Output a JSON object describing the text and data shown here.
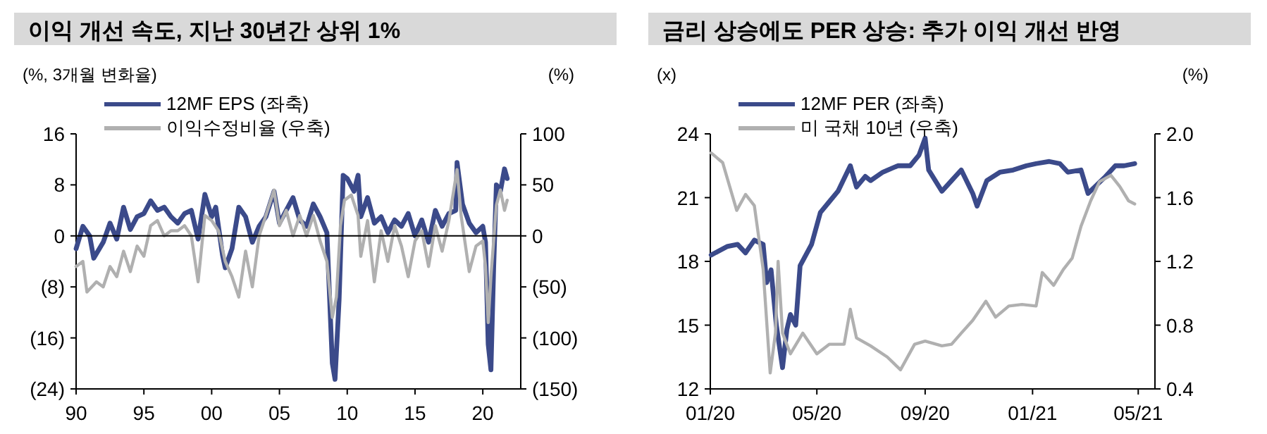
{
  "chart_data": [
    {
      "type": "line",
      "title": "이익 개선 속도, 지난 30년간 상위 1%",
      "ylabel": "(%, 3개월 변화율)",
      "y2label": "(%)",
      "legend": "top left",
      "grid": false,
      "xlim": [
        1990,
        2022.8
      ],
      "xticks": [
        {
          "value": 1990,
          "label": "90"
        },
        {
          "value": 1995,
          "label": "95"
        },
        {
          "value": 2000,
          "label": "00"
        },
        {
          "value": 2005,
          "label": "05"
        },
        {
          "value": 2010,
          "label": "10"
        },
        {
          "value": 2015,
          "label": "15"
        },
        {
          "value": 2020,
          "label": "20"
        }
      ],
      "ylim": [
        -24,
        16
      ],
      "yticks": [
        {
          "value": 16,
          "label": "16"
        },
        {
          "value": 8,
          "label": "8"
        },
        {
          "value": 0,
          "label": "0"
        },
        {
          "value": -8,
          "label": "(8)"
        },
        {
          "value": -16,
          "label": "(16)"
        },
        {
          "value": -24,
          "label": "(24)"
        }
      ],
      "y2lim": [
        -150,
        100
      ],
      "y2ticks": [
        {
          "value": 100,
          "label": "100"
        },
        {
          "value": 50,
          "label": "50"
        },
        {
          "value": 0,
          "label": "0"
        },
        {
          "value": -50,
          "label": "(50)"
        },
        {
          "value": -100,
          "label": "(100)"
        },
        {
          "value": -150,
          "label": "(150)"
        }
      ],
      "ref_lines": [
        {
          "axis": "y",
          "value": 0,
          "color": "#000000"
        }
      ],
      "series": [
        {
          "name": "12MF EPS (좌축)",
          "color": "#3b4a8a",
          "x": [
            1990,
            1990.5,
            1991,
            1991.3,
            1992,
            1992.5,
            1993,
            1993.5,
            1994,
            1994.5,
            1995,
            1995.5,
            1996,
            1996.5,
            1997,
            1997.5,
            1998,
            1998.5,
            1999,
            1999.5,
            2000,
            2000.3,
            2000.8,
            2001,
            2001.5,
            2002,
            2002.5,
            2003,
            2003.5,
            2004,
            2004.6,
            2005,
            2005.5,
            2006,
            2006.5,
            2007,
            2007.5,
            2008,
            2008.5,
            2008.9,
            2009.1,
            2009.4,
            2009.7,
            2010,
            2010.5,
            2010.8,
            2011,
            2011.5,
            2012,
            2012.5,
            2013,
            2013.5,
            2014,
            2014.5,
            2015,
            2015.5,
            2016,
            2016.5,
            2017,
            2017.5,
            2018,
            2018.1,
            2018.5,
            2019,
            2019.5,
            2020,
            2020.2,
            2020.4,
            2020.6,
            2020.8,
            2021,
            2021.3,
            2021.6,
            2021.8
          ],
          "values": [
            -2,
            1.5,
            0,
            -3.5,
            -1,
            2,
            -0.5,
            4.5,
            1,
            3,
            3.5,
            5.5,
            4,
            4.5,
            3,
            2,
            3.5,
            4,
            -0.5,
            6.5,
            3,
            4.5,
            -3,
            -5,
            -2,
            4.5,
            3,
            -1,
            1.5,
            3,
            7,
            2,
            4,
            6,
            2.5,
            1.5,
            5,
            3,
            0.5,
            -20,
            -22.5,
            -10,
            9.5,
            9,
            7,
            9.5,
            3,
            6,
            2,
            3,
            0.5,
            2.5,
            1.5,
            3.5,
            0,
            2.5,
            -1,
            4,
            1.5,
            3.5,
            4,
            11.5,
            5,
            2,
            0.5,
            1.5,
            -1,
            -17,
            -21,
            -5,
            8,
            7,
            10.5,
            9
          ]
        },
        {
          "name": "이익수정비율 (우축)",
          "color": "#b0b0b0",
          "axis": "y2",
          "x": [
            1990,
            1990.5,
            1990.8,
            1991.5,
            1992,
            1992.5,
            1993,
            1993.5,
            1994,
            1994.5,
            1995,
            1995.5,
            1996,
            1996.5,
            1997,
            1997.5,
            1998,
            1998.5,
            1999,
            1999.5,
            2000,
            2000.5,
            2001,
            2001.5,
            2002,
            2002.5,
            2003,
            2003.5,
            2004,
            2004.6,
            2005,
            2005.5,
            2006,
            2006.5,
            2007,
            2007.5,
            2008,
            2008.5,
            2008.9,
            2009.2,
            2009.5,
            2009.8,
            2010.3,
            2010.8,
            2011,
            2011.5,
            2012,
            2012.5,
            2013,
            2013.5,
            2014,
            2014.5,
            2015,
            2015.5,
            2016,
            2016.5,
            2017,
            2017.5,
            2018.1,
            2018.4,
            2019,
            2019.5,
            2020,
            2020.2,
            2020.4,
            2020.6,
            2021,
            2021.3,
            2021.6,
            2021.8
          ],
          "values": [
            -30,
            -25,
            -55,
            -45,
            -50,
            -30,
            -40,
            -15,
            -35,
            -10,
            -20,
            10,
            15,
            0,
            5,
            5,
            10,
            0,
            -45,
            20,
            15,
            5,
            -25,
            -40,
            -60,
            -15,
            -50,
            0,
            20,
            45,
            10,
            25,
            0,
            20,
            0,
            20,
            -5,
            -25,
            -80,
            -60,
            10,
            35,
            40,
            20,
            -20,
            15,
            -45,
            5,
            -25,
            10,
            -10,
            -40,
            -5,
            5,
            -30,
            10,
            -15,
            15,
            65,
            20,
            -35,
            -10,
            -5,
            -30,
            -85,
            -40,
            30,
            45,
            25,
            35
          ]
        }
      ]
    },
    {
      "type": "line",
      "title": "금리 상승에도 PER 상승: 추가 이익 개선 반영",
      "ylabel": "(x)",
      "y2label": "(%)",
      "legend": "top left",
      "grid": false,
      "xlim": [
        "2020-01-01",
        "2021-05-20"
      ],
      "xticks": [
        {
          "value": "2020-01-01",
          "label": "01/20"
        },
        {
          "value": "2020-05-01",
          "label": "05/20"
        },
        {
          "value": "2020-09-01",
          "label": "09/20"
        },
        {
          "value": "2021-01-01",
          "label": "01/21"
        },
        {
          "value": "2021-05-01",
          "label": "05/21"
        }
      ],
      "ylim": [
        12,
        24
      ],
      "yticks": [
        12,
        15,
        18,
        21,
        24
      ],
      "y2lim": [
        0.4,
        2.0
      ],
      "y2ticks": [
        {
          "value": 0.4,
          "label": "0.4"
        },
        {
          "value": 0.8,
          "label": "0.8"
        },
        {
          "value": 1.2,
          "label": "1.2"
        },
        {
          "value": 1.6,
          "label": "1.6"
        },
        {
          "value": 2.0,
          "label": "2.0"
        }
      ],
      "series": [
        {
          "name": "12MF PER (좌축)",
          "color": "#3b4a8a",
          "x": [
            "2020-01-02",
            "2020-01-20",
            "2020-02-01",
            "2020-02-10",
            "2020-02-20",
            "2020-03-01",
            "2020-03-05",
            "2020-03-10",
            "2020-03-16",
            "2020-03-23",
            "2020-03-28",
            "2020-04-01",
            "2020-04-07",
            "2020-04-12",
            "2020-04-25",
            "2020-05-05",
            "2020-05-15",
            "2020-05-25",
            "2020-06-08",
            "2020-06-15",
            "2020-06-25",
            "2020-07-01",
            "2020-07-15",
            "2020-08-01",
            "2020-08-15",
            "2020-08-25",
            "2020-09-01",
            "2020-09-05",
            "2020-09-20",
            "2020-10-01",
            "2020-10-12",
            "2020-10-25",
            "2020-10-30",
            "2020-11-10",
            "2020-11-25",
            "2020-12-10",
            "2020-12-25",
            "2021-01-05",
            "2021-01-20",
            "2021-02-01",
            "2021-02-10",
            "2021-02-25",
            "2021-03-05",
            "2021-03-15",
            "2021-03-25",
            "2021-04-05",
            "2021-04-15",
            "2021-04-27"
          ],
          "values": [
            18.3,
            18.7,
            18.8,
            18.4,
            19.0,
            18.8,
            17.0,
            17.6,
            15.0,
            13.0,
            14.8,
            15.5,
            15.0,
            17.8,
            18.8,
            20.3,
            20.8,
            21.3,
            22.5,
            21.5,
            22.0,
            21.8,
            22.2,
            22.5,
            22.5,
            23.0,
            23.8,
            22.3,
            21.3,
            21.8,
            22.3,
            21.2,
            20.6,
            21.8,
            22.2,
            22.3,
            22.5,
            22.6,
            22.7,
            22.6,
            22.2,
            22.3,
            21.2,
            21.6,
            22.0,
            22.5,
            22.5,
            22.6
          ]
        },
        {
          "name": "미 국채 10년 (우축)",
          "color": "#b0b0b0",
          "axis": "y2",
          "x": [
            "2020-01-02",
            "2020-01-15",
            "2020-01-31",
            "2020-02-10",
            "2020-02-20",
            "2020-03-01",
            "2020-03-09",
            "2020-03-15",
            "2020-03-18",
            "2020-03-23",
            "2020-04-01",
            "2020-04-15",
            "2020-05-01",
            "2020-05-15",
            "2020-06-01",
            "2020-06-08",
            "2020-06-15",
            "2020-07-01",
            "2020-07-20",
            "2020-08-04",
            "2020-08-20",
            "2020-09-01",
            "2020-09-20",
            "2020-10-01",
            "2020-10-12",
            "2020-10-25",
            "2020-11-09",
            "2020-11-20",
            "2020-12-05",
            "2020-12-20",
            "2021-01-05",
            "2021-01-12",
            "2021-01-25",
            "2021-02-05",
            "2021-02-15",
            "2021-02-25",
            "2021-03-08",
            "2021-03-18",
            "2021-03-31",
            "2021-04-10",
            "2021-04-20",
            "2021-04-27"
          ],
          "values": [
            1.88,
            1.82,
            1.52,
            1.62,
            1.55,
            1.15,
            0.5,
            0.75,
            1.2,
            0.75,
            0.62,
            0.75,
            0.62,
            0.68,
            0.68,
            0.9,
            0.72,
            0.67,
            0.6,
            0.52,
            0.68,
            0.7,
            0.67,
            0.68,
            0.75,
            0.83,
            0.95,
            0.85,
            0.92,
            0.93,
            0.92,
            1.13,
            1.05,
            1.15,
            1.22,
            1.42,
            1.58,
            1.7,
            1.74,
            1.67,
            1.58,
            1.56
          ]
        }
      ]
    }
  ]
}
